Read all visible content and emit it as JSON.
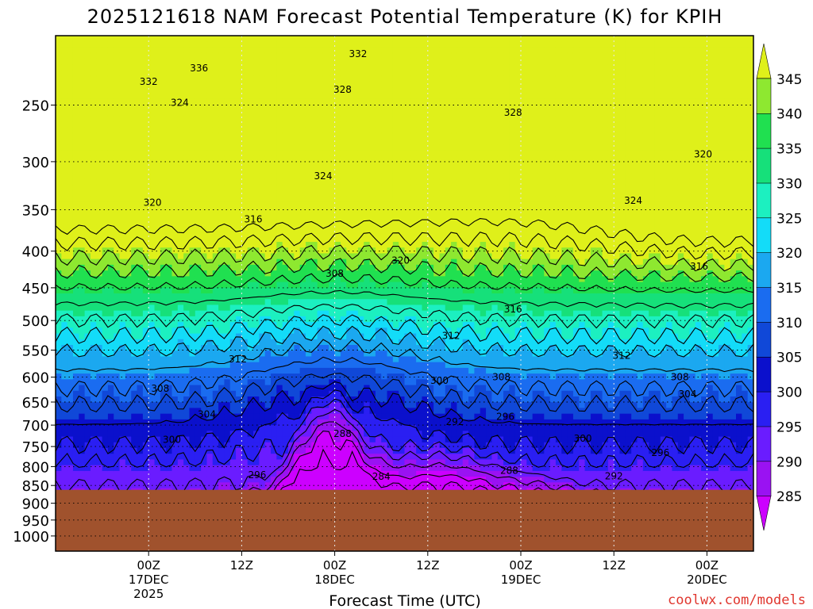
{
  "chart_data": {
    "type": "heatmap",
    "title": "2025121618 NAM Forecast Potential Temperature (K) for KPIH",
    "xlabel": "Forecast Time (UTC)",
    "ylabel": "",
    "y_scale": "log-pressure",
    "y_reversed": true,
    "xlim": [
      -6,
      84
    ],
    "ylim": [
      1050,
      200
    ],
    "x_ticks": [
      {
        "x": 6,
        "label": "00Z",
        "sub1": "17DEC",
        "sub2": "2025"
      },
      {
        "x": 18,
        "label": "12Z",
        "sub1": "",
        "sub2": ""
      },
      {
        "x": 30,
        "label": "00Z",
        "sub1": "18DEC",
        "sub2": ""
      },
      {
        "x": 42,
        "label": "12Z",
        "sub1": "",
        "sub2": ""
      },
      {
        "x": 54,
        "label": "00Z",
        "sub1": "19DEC",
        "sub2": ""
      },
      {
        "x": 66,
        "label": "12Z",
        "sub1": "",
        "sub2": ""
      },
      {
        "x": 78,
        "label": "00Z",
        "sub1": "20DEC",
        "sub2": ""
      }
    ],
    "y_ticks": [
      250,
      300,
      350,
      400,
      450,
      500,
      550,
      600,
      650,
      700,
      750,
      800,
      850,
      900,
      950,
      1000
    ],
    "grid": true,
    "terrain_top_hpa": 862,
    "terrain_color": "#a0522d",
    "colorbar": {
      "levels": [
        285,
        290,
        295,
        300,
        305,
        310,
        315,
        320,
        325,
        330,
        335,
        340,
        345
      ],
      "colors": [
        "#cc00ff",
        "#9a12f2",
        "#6a1cff",
        "#2a1ff2",
        "#0b10cc",
        "#1048d8",
        "#1a6cf0",
        "#1ba8f0",
        "#13dcf8",
        "#1cf0c0",
        "#16e07a",
        "#20e050",
        "#8ee830",
        "#dff01a"
      ],
      "extend": "both"
    },
    "contour_labels": [
      {
        "value": "332",
        "x": 33.0,
        "p": 212
      },
      {
        "value": "336",
        "x": 12.5,
        "p": 222
      },
      {
        "value": "332",
        "x": 6.0,
        "p": 232
      },
      {
        "value": "328",
        "x": 31.0,
        "p": 238
      },
      {
        "value": "324",
        "x": 10.0,
        "p": 248
      },
      {
        "value": "328",
        "x": 53.0,
        "p": 256
      },
      {
        "value": "320",
        "x": 77.5,
        "p": 293
      },
      {
        "value": "324",
        "x": 28.5,
        "p": 314
      },
      {
        "value": "324",
        "x": 68.5,
        "p": 340
      },
      {
        "value": "320",
        "x": 6.5,
        "p": 342
      },
      {
        "value": "316",
        "x": 19.5,
        "p": 361
      },
      {
        "value": "316",
        "x": 77.0,
        "p": 420
      },
      {
        "value": "320",
        "x": 38.5,
        "p": 412
      },
      {
        "value": "308",
        "x": 30.0,
        "p": 430
      },
      {
        "value": "316",
        "x": 53.0,
        "p": 482
      },
      {
        "value": "312",
        "x": 45.0,
        "p": 525
      },
      {
        "value": "312",
        "x": 17.5,
        "p": 566
      },
      {
        "value": "312",
        "x": 67.0,
        "p": 560
      },
      {
        "value": "300",
        "x": 43.5,
        "p": 607
      },
      {
        "value": "308",
        "x": 51.5,
        "p": 600
      },
      {
        "value": "308",
        "x": 74.5,
        "p": 600
      },
      {
        "value": "308",
        "x": 7.5,
        "p": 622
      },
      {
        "value": "304",
        "x": 75.5,
        "p": 634
      },
      {
        "value": "304",
        "x": 13.5,
        "p": 676
      },
      {
        "value": "292",
        "x": 45.5,
        "p": 693
      },
      {
        "value": "296",
        "x": 52.0,
        "p": 681
      },
      {
        "value": "300",
        "x": 9.0,
        "p": 734
      },
      {
        "value": "288",
        "x": 31.0,
        "p": 720
      },
      {
        "value": "300",
        "x": 62.0,
        "p": 731
      },
      {
        "value": "296",
        "x": 72.0,
        "p": 765
      },
      {
        "value": "296",
        "x": 20.0,
        "p": 822
      },
      {
        "value": "288",
        "x": 52.5,
        "p": 810
      },
      {
        "value": "292",
        "x": 66.0,
        "p": 825
      },
      {
        "value": "284",
        "x": 36.0,
        "p": 826
      }
    ]
  },
  "footer": {
    "credit": "coolwx.com/models"
  }
}
